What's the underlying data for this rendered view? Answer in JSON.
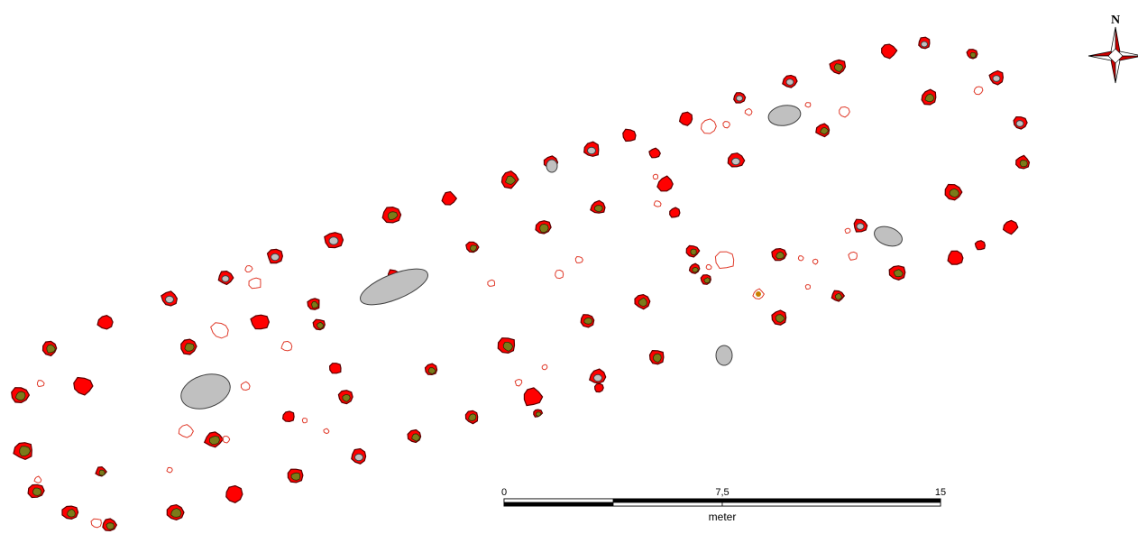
{
  "scale_bar": {
    "labels": [
      "0",
      "7,5",
      "15"
    ],
    "unit": "meter"
  },
  "north_arrow": {
    "label": "N",
    "icon": "compass-rose-icon"
  },
  "colors": {
    "posthole": "#ff0000",
    "posthole_outline": "#5a0000",
    "core": "#7b7b1a",
    "stone": "#c0c0c0",
    "hollow_feature": "#e03a2a"
  }
}
